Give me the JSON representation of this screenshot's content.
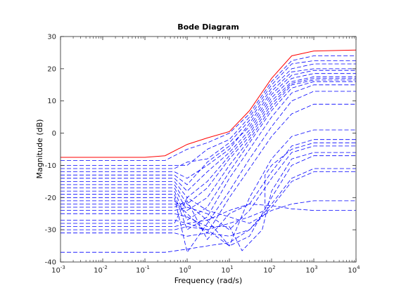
{
  "chart_data": {
    "type": "line",
    "title": "Bode Diagram",
    "xlabel": "Frequency  (rad/s)",
    "ylabel": "Magnitude (dB)",
    "xscale": "log",
    "xlim": [
      0.001,
      10000
    ],
    "ylim": [
      -40,
      30
    ],
    "xticks": [
      {
        "base": "10",
        "exp": "-3"
      },
      {
        "base": "10",
        "exp": "-2"
      },
      {
        "base": "10",
        "exp": "-1"
      },
      {
        "base": "10",
        "exp": "0"
      },
      {
        "base": "10",
        "exp": "1"
      },
      {
        "base": "10",
        "exp": "2"
      },
      {
        "base": "10",
        "exp": "3"
      },
      {
        "base": "10",
        "exp": "4"
      }
    ],
    "yticks": [
      "30",
      "20",
      "10",
      "0",
      "-10",
      "-20",
      "-30",
      "-40"
    ],
    "grid": false,
    "nominal_color": "#ff0000",
    "family_color": "#0000ff",
    "nominal_series": {
      "style": "solid",
      "points": [
        [
          0.001,
          -7.5
        ],
        [
          0.1,
          -7.5
        ],
        [
          0.3,
          -7.0
        ],
        [
          1.0,
          -3.5
        ],
        [
          3.0,
          -1.5
        ],
        [
          10.0,
          0.5
        ],
        [
          30.0,
          7.0
        ],
        [
          100.0,
          17.0
        ],
        [
          300.0,
          24.0
        ],
        [
          1000.0,
          25.5
        ],
        [
          10000.0,
          25.8
        ]
      ]
    },
    "family_series": [
      {
        "style": "dashed",
        "points": [
          [
            0.001,
            -8.5
          ],
          [
            0.3,
            -8.5
          ],
          [
            1,
            -5
          ],
          [
            3,
            -3
          ],
          [
            10,
            0
          ],
          [
            30,
            6
          ],
          [
            100,
            16
          ],
          [
            300,
            22.5
          ],
          [
            1000,
            24
          ],
          [
            10000,
            24
          ]
        ]
      },
      {
        "style": "dashed",
        "points": [
          [
            0.001,
            -10
          ],
          [
            0.5,
            -10
          ],
          [
            1,
            -10
          ],
          [
            3,
            -5
          ],
          [
            10,
            -2
          ],
          [
            30,
            5
          ],
          [
            100,
            15
          ],
          [
            300,
            21.5
          ],
          [
            1000,
            22.5
          ],
          [
            10000,
            22.5
          ]
        ]
      },
      {
        "style": "dashed",
        "points": [
          [
            0.001,
            -11
          ],
          [
            0.5,
            -11
          ],
          [
            1,
            -9
          ],
          [
            3,
            -8
          ],
          [
            10,
            -3
          ],
          [
            30,
            4
          ],
          [
            100,
            14
          ],
          [
            300,
            20
          ],
          [
            1000,
            21.5
          ],
          [
            10000,
            21.5
          ]
        ]
      },
      {
        "style": "dashed",
        "points": [
          [
            0.001,
            -12
          ],
          [
            0.5,
            -12
          ],
          [
            1,
            -14
          ],
          [
            3,
            -10
          ],
          [
            10,
            -5
          ],
          [
            30,
            3
          ],
          [
            100,
            13
          ],
          [
            300,
            19
          ],
          [
            1000,
            20
          ],
          [
            10000,
            20
          ]
        ]
      },
      {
        "style": "dashed",
        "points": [
          [
            0.001,
            -13
          ],
          [
            0.5,
            -13
          ],
          [
            1,
            -16
          ],
          [
            3,
            -9
          ],
          [
            10,
            -4
          ],
          [
            30,
            2
          ],
          [
            100,
            12
          ],
          [
            300,
            18
          ],
          [
            1000,
            19.5
          ],
          [
            10000,
            19.5
          ]
        ]
      },
      {
        "style": "dashed",
        "points": [
          [
            0.001,
            -14
          ],
          [
            0.5,
            -14
          ],
          [
            1,
            -18
          ],
          [
            3,
            -12
          ],
          [
            10,
            -6
          ],
          [
            30,
            1
          ],
          [
            100,
            11
          ],
          [
            300,
            17
          ],
          [
            1000,
            18.5
          ],
          [
            10000,
            18.5
          ]
        ]
      },
      {
        "style": "dashed",
        "points": [
          [
            0.001,
            -15
          ],
          [
            0.5,
            -15
          ],
          [
            1,
            -20
          ],
          [
            3,
            -15
          ],
          [
            10,
            -7
          ],
          [
            30,
            0
          ],
          [
            100,
            10
          ],
          [
            300,
            16
          ],
          [
            1000,
            17.5
          ],
          [
            10000,
            17.5
          ]
        ]
      },
      {
        "style": "dashed",
        "points": [
          [
            0.001,
            -16
          ],
          [
            0.5,
            -16
          ],
          [
            1,
            -22
          ],
          [
            3,
            -17
          ],
          [
            10,
            -8
          ],
          [
            30,
            -1
          ],
          [
            100,
            9
          ],
          [
            300,
            15.5
          ],
          [
            1000,
            17
          ],
          [
            10000,
            17
          ]
        ]
      },
      {
        "style": "dashed",
        "points": [
          [
            0.001,
            -17
          ],
          [
            0.5,
            -17
          ],
          [
            1,
            -24
          ],
          [
            3,
            -20
          ],
          [
            10,
            -10
          ],
          [
            30,
            -2
          ],
          [
            100,
            8
          ],
          [
            300,
            15
          ],
          [
            1000,
            16.5
          ],
          [
            10000,
            16.5
          ]
        ]
      },
      {
        "style": "dashed",
        "points": [
          [
            0.001,
            -18
          ],
          [
            0.5,
            -18
          ],
          [
            1,
            -27
          ],
          [
            3,
            -23
          ],
          [
            10,
            -12
          ],
          [
            30,
            -3
          ],
          [
            100,
            7
          ],
          [
            300,
            14
          ],
          [
            1000,
            16
          ],
          [
            10000,
            16
          ]
        ]
      },
      {
        "style": "dashed",
        "points": [
          [
            0.001,
            -19
          ],
          [
            0.5,
            -19
          ],
          [
            1,
            -30
          ],
          [
            3,
            -26
          ],
          [
            10,
            -14
          ],
          [
            30,
            -5
          ],
          [
            100,
            5
          ],
          [
            300,
            12.5
          ],
          [
            1000,
            15
          ],
          [
            10000,
            15
          ]
        ]
      },
      {
        "style": "dashed",
        "points": [
          [
            0.001,
            -20
          ],
          [
            0.5,
            -20
          ],
          [
            1,
            -37
          ],
          [
            3,
            -28
          ],
          [
            10,
            -18
          ],
          [
            30,
            -8
          ],
          [
            100,
            2
          ],
          [
            300,
            10
          ],
          [
            1000,
            13
          ],
          [
            10000,
            13
          ]
        ]
      },
      {
        "style": "dashed",
        "points": [
          [
            0.001,
            -21
          ],
          [
            0.5,
            -21
          ],
          [
            1,
            -25
          ],
          [
            3,
            -31
          ],
          [
            10,
            -20
          ],
          [
            30,
            -11
          ],
          [
            100,
            -1
          ],
          [
            300,
            6
          ],
          [
            1000,
            9
          ],
          [
            10000,
            9
          ]
        ]
      },
      {
        "style": "dashed",
        "points": [
          [
            0.001,
            -22
          ],
          [
            0.5,
            -22
          ],
          [
            1,
            -22
          ],
          [
            3,
            -27
          ],
          [
            10,
            -35
          ],
          [
            30,
            -20
          ],
          [
            100,
            -8
          ],
          [
            300,
            -1
          ],
          [
            1000,
            1
          ],
          [
            10000,
            1
          ]
        ]
      },
      {
        "style": "dashed",
        "points": [
          [
            0.001,
            -23
          ],
          [
            0.5,
            -23
          ],
          [
            1,
            -21
          ],
          [
            3,
            -33
          ],
          [
            10,
            -25
          ],
          [
            30,
            -22
          ],
          [
            100,
            -12
          ],
          [
            300,
            -4
          ],
          [
            1000,
            -2
          ],
          [
            10000,
            -2
          ]
        ]
      },
      {
        "style": "dashed",
        "points": [
          [
            0.001,
            -24
          ],
          [
            0.5,
            -24
          ],
          [
            1,
            -23
          ],
          [
            3,
            -25
          ],
          [
            10,
            -30
          ],
          [
            30,
            -24
          ],
          [
            100,
            -14
          ],
          [
            300,
            -6
          ],
          [
            1000,
            -4
          ],
          [
            10000,
            -4
          ]
        ]
      },
      {
        "style": "dashed",
        "points": [
          [
            0.001,
            -25
          ],
          [
            0.5,
            -25
          ],
          [
            1,
            -26
          ],
          [
            3,
            -29
          ],
          [
            10,
            -29
          ],
          [
            20,
            -36.5
          ],
          [
            60,
            -30
          ],
          [
            100,
            -18
          ],
          [
            300,
            -8
          ],
          [
            1000,
            -6
          ],
          [
            10000,
            -6
          ]
        ]
      },
      {
        "style": "dashed",
        "points": [
          [
            0.001,
            -27
          ],
          [
            0.5,
            -27
          ],
          [
            1,
            -28
          ],
          [
            3,
            -30
          ],
          [
            10,
            -35
          ],
          [
            30,
            -32
          ],
          [
            100,
            -20
          ],
          [
            300,
            -10
          ],
          [
            1000,
            -7
          ],
          [
            10000,
            -7
          ]
        ]
      },
      {
        "style": "dashed",
        "points": [
          [
            0.001,
            -28
          ],
          [
            0.5,
            -28
          ],
          [
            1,
            -20
          ],
          [
            3,
            -24
          ],
          [
            10,
            -26
          ],
          [
            30,
            -28
          ],
          [
            100,
            -24
          ],
          [
            300,
            -22
          ],
          [
            1000,
            -21
          ],
          [
            10000,
            -21
          ]
        ]
      },
      {
        "style": "dashed",
        "points": [
          [
            0.001,
            -29
          ],
          [
            0.5,
            -29
          ],
          [
            1,
            -28
          ],
          [
            3,
            -27
          ],
          [
            10,
            -24
          ],
          [
            30,
            -22
          ],
          [
            100,
            -22.5
          ],
          [
            300,
            -23.5
          ],
          [
            1000,
            -24
          ],
          [
            10000,
            -24
          ]
        ]
      },
      {
        "style": "dashed",
        "points": [
          [
            0.001,
            -30
          ],
          [
            0.5,
            -30
          ],
          [
            1,
            -29
          ],
          [
            3,
            -30
          ],
          [
            10,
            -28
          ],
          [
            30,
            -26
          ],
          [
            70,
            -24
          ],
          [
            70,
            -13
          ],
          [
            100,
            -10
          ],
          [
            300,
            -5
          ],
          [
            1000,
            -3
          ],
          [
            10000,
            -3
          ]
        ]
      },
      {
        "style": "dashed",
        "points": [
          [
            0.001,
            -31
          ],
          [
            0.5,
            -31
          ],
          [
            1,
            -32
          ],
          [
            3,
            -31
          ],
          [
            10,
            -32
          ],
          [
            30,
            -30
          ],
          [
            100,
            -23
          ],
          [
            300,
            -15
          ],
          [
            1000,
            -12
          ],
          [
            10000,
            -12
          ]
        ]
      },
      {
        "style": "dashed",
        "points": [
          [
            0.001,
            -37
          ],
          [
            0.3,
            -37
          ],
          [
            1,
            -36
          ],
          [
            3,
            -35
          ],
          [
            10,
            -34
          ],
          [
            30,
            -30
          ],
          [
            100,
            -22
          ],
          [
            300,
            -14
          ],
          [
            1000,
            -11
          ],
          [
            10000,
            -11
          ]
        ]
      }
    ]
  }
}
